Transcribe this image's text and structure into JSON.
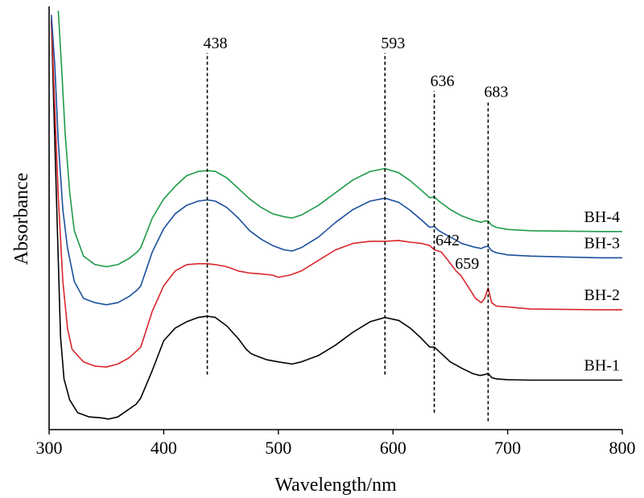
{
  "chart_data": {
    "type": "line",
    "title": "",
    "xlabel": "Wavelength/nm",
    "ylabel": "Absorbance",
    "xlim": [
      300,
      800
    ],
    "ylim": [
      0,
      1
    ],
    "x_ticks": [
      "300",
      "400",
      "500",
      "600",
      "700",
      "800"
    ],
    "y_ticks_labeled": false,
    "grid": false,
    "legend": "inline labels at right end of each curve",
    "series": [
      {
        "name": "BH-1",
        "color": "#000000",
        "points": [
          [
            302,
            0.97
          ],
          [
            305,
            0.68
          ],
          [
            308,
            0.4
          ],
          [
            310,
            0.22
          ],
          [
            313,
            0.12
          ],
          [
            318,
            0.07
          ],
          [
            325,
            0.04
          ],
          [
            335,
            0.03
          ],
          [
            345,
            0.028
          ],
          [
            352,
            0.025
          ],
          [
            360,
            0.03
          ],
          [
            368,
            0.045
          ],
          [
            376,
            0.06
          ],
          [
            380,
            0.075
          ],
          [
            390,
            0.14
          ],
          [
            400,
            0.21
          ],
          [
            410,
            0.24
          ],
          [
            420,
            0.255
          ],
          [
            430,
            0.265
          ],
          [
            438,
            0.268
          ],
          [
            445,
            0.265
          ],
          [
            455,
            0.245
          ],
          [
            465,
            0.215
          ],
          [
            472,
            0.19
          ],
          [
            476,
            0.18
          ],
          [
            480,
            0.175
          ],
          [
            490,
            0.165
          ],
          [
            500,
            0.16
          ],
          [
            512,
            0.155
          ],
          [
            520,
            0.16
          ],
          [
            535,
            0.175
          ],
          [
            550,
            0.2
          ],
          [
            565,
            0.23
          ],
          [
            580,
            0.255
          ],
          [
            593,
            0.265
          ],
          [
            605,
            0.258
          ],
          [
            615,
            0.24
          ],
          [
            625,
            0.215
          ],
          [
            632,
            0.195
          ],
          [
            636,
            0.195
          ],
          [
            640,
            0.185
          ],
          [
            650,
            0.16
          ],
          [
            660,
            0.145
          ],
          [
            670,
            0.132
          ],
          [
            676,
            0.128
          ],
          [
            680,
            0.13
          ],
          [
            683,
            0.133
          ],
          [
            686,
            0.123
          ],
          [
            690,
            0.12
          ],
          [
            700,
            0.118
          ],
          [
            720,
            0.117
          ],
          [
            750,
            0.117
          ],
          [
            780,
            0.117
          ],
          [
            800,
            0.117
          ]
        ]
      },
      {
        "name": "BH-2",
        "color": "#d9262b",
        "points": [
          [
            302,
            0.97
          ],
          [
            305,
            0.76
          ],
          [
            308,
            0.55
          ],
          [
            312,
            0.35
          ],
          [
            316,
            0.24
          ],
          [
            320,
            0.19
          ],
          [
            330,
            0.16
          ],
          [
            340,
            0.15
          ],
          [
            350,
            0.148
          ],
          [
            360,
            0.155
          ],
          [
            370,
            0.17
          ],
          [
            380,
            0.195
          ],
          [
            390,
            0.28
          ],
          [
            400,
            0.34
          ],
          [
            410,
            0.375
          ],
          [
            420,
            0.39
          ],
          [
            430,
            0.392
          ],
          [
            438,
            0.392
          ],
          [
            445,
            0.39
          ],
          [
            455,
            0.385
          ],
          [
            465,
            0.375
          ],
          [
            475,
            0.37
          ],
          [
            485,
            0.368
          ],
          [
            495,
            0.365
          ],
          [
            500,
            0.36
          ],
          [
            510,
            0.365
          ],
          [
            520,
            0.375
          ],
          [
            535,
            0.4
          ],
          [
            550,
            0.425
          ],
          [
            565,
            0.44
          ],
          [
            580,
            0.445
          ],
          [
            593,
            0.445
          ],
          [
            605,
            0.447
          ],
          [
            615,
            0.443
          ],
          [
            625,
            0.44
          ],
          [
            632,
            0.435
          ],
          [
            636,
            0.425
          ],
          [
            642,
            0.42
          ],
          [
            648,
            0.4
          ],
          [
            655,
            0.375
          ],
          [
            659,
            0.365
          ],
          [
            665,
            0.34
          ],
          [
            672,
            0.31
          ],
          [
            677,
            0.3
          ],
          [
            680,
            0.31
          ],
          [
            683,
            0.335
          ],
          [
            686,
            0.3
          ],
          [
            690,
            0.292
          ],
          [
            700,
            0.29
          ],
          [
            720,
            0.285
          ],
          [
            750,
            0.284
          ],
          [
            780,
            0.283
          ],
          [
            800,
            0.283
          ]
        ]
      },
      {
        "name": "BH-3",
        "color": "#1b4f9c",
        "points": [
          [
            302,
            0.98
          ],
          [
            305,
            0.86
          ],
          [
            308,
            0.68
          ],
          [
            312,
            0.52
          ],
          [
            316,
            0.43
          ],
          [
            322,
            0.35
          ],
          [
            330,
            0.31
          ],
          [
            340,
            0.3
          ],
          [
            350,
            0.295
          ],
          [
            360,
            0.3
          ],
          [
            370,
            0.315
          ],
          [
            377,
            0.33
          ],
          [
            380,
            0.34
          ],
          [
            390,
            0.42
          ],
          [
            400,
            0.475
          ],
          [
            410,
            0.51
          ],
          [
            420,
            0.53
          ],
          [
            430,
            0.54
          ],
          [
            438,
            0.543
          ],
          [
            445,
            0.54
          ],
          [
            455,
            0.525
          ],
          [
            465,
            0.5
          ],
          [
            475,
            0.47
          ],
          [
            485,
            0.45
          ],
          [
            495,
            0.435
          ],
          [
            505,
            0.425
          ],
          [
            512,
            0.422
          ],
          [
            520,
            0.43
          ],
          [
            535,
            0.455
          ],
          [
            550,
            0.49
          ],
          [
            565,
            0.52
          ],
          [
            580,
            0.54
          ],
          [
            593,
            0.547
          ],
          [
            605,
            0.537
          ],
          [
            615,
            0.518
          ],
          [
            625,
            0.495
          ],
          [
            632,
            0.478
          ],
          [
            636,
            0.48
          ],
          [
            640,
            0.47
          ],
          [
            650,
            0.455
          ],
          [
            660,
            0.44
          ],
          [
            670,
            0.432
          ],
          [
            677,
            0.428
          ],
          [
            680,
            0.432
          ],
          [
            683,
            0.433
          ],
          [
            686,
            0.423
          ],
          [
            690,
            0.418
          ],
          [
            700,
            0.413
          ],
          [
            720,
            0.41
          ],
          [
            750,
            0.408
          ],
          [
            780,
            0.406
          ],
          [
            800,
            0.406
          ]
        ]
      },
      {
        "name": "BH-4",
        "color": "#1e9a49",
        "points": [
          [
            308,
            0.99
          ],
          [
            311,
            0.85
          ],
          [
            314,
            0.7
          ],
          [
            318,
            0.56
          ],
          [
            322,
            0.47
          ],
          [
            330,
            0.41
          ],
          [
            340,
            0.39
          ],
          [
            350,
            0.385
          ],
          [
            360,
            0.39
          ],
          [
            370,
            0.405
          ],
          [
            377,
            0.42
          ],
          [
            380,
            0.43
          ],
          [
            390,
            0.5
          ],
          [
            400,
            0.545
          ],
          [
            410,
            0.575
          ],
          [
            420,
            0.6
          ],
          [
            430,
            0.61
          ],
          [
            438,
            0.612
          ],
          [
            445,
            0.61
          ],
          [
            455,
            0.595
          ],
          [
            465,
            0.57
          ],
          [
            475,
            0.545
          ],
          [
            485,
            0.525
          ],
          [
            495,
            0.51
          ],
          [
            505,
            0.503
          ],
          [
            512,
            0.5
          ],
          [
            520,
            0.507
          ],
          [
            535,
            0.53
          ],
          [
            550,
            0.56
          ],
          [
            565,
            0.59
          ],
          [
            580,
            0.61
          ],
          [
            593,
            0.617
          ],
          [
            605,
            0.607
          ],
          [
            615,
            0.588
          ],
          [
            625,
            0.565
          ],
          [
            632,
            0.548
          ],
          [
            636,
            0.55
          ],
          [
            640,
            0.54
          ],
          [
            650,
            0.52
          ],
          [
            660,
            0.505
          ],
          [
            670,
            0.495
          ],
          [
            677,
            0.49
          ],
          [
            680,
            0.493
          ],
          [
            683,
            0.493
          ],
          [
            686,
            0.483
          ],
          [
            690,
            0.478
          ],
          [
            700,
            0.473
          ],
          [
            720,
            0.47
          ],
          [
            750,
            0.469
          ],
          [
            780,
            0.468
          ],
          [
            800,
            0.468
          ]
        ]
      }
    ],
    "annotations": [
      {
        "label": "438",
        "x": 438,
        "y_from": 0.13,
        "y_to": 0.89,
        "style": "dashed"
      },
      {
        "label": "593",
        "x": 593,
        "y_from": 0.13,
        "y_to": 0.89,
        "style": "dashed"
      },
      {
        "label": "636",
        "x": 636,
        "y_from": 0.04,
        "y_to": 0.8,
        "style": "dashed"
      },
      {
        "label": "683",
        "x": 683,
        "y_from": 0.02,
        "y_to": 0.775,
        "style": "dashed"
      }
    ],
    "point_labels": [
      {
        "label": "642",
        "x": 642,
        "y": 0.42
      },
      {
        "label": "659",
        "x": 659,
        "y": 0.365
      }
    ]
  }
}
